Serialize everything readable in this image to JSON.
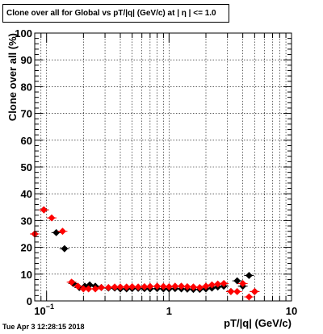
{
  "timestamp": "Tue Apr  3 12:28:15 2018",
  "chart_data": {
    "type": "scatter",
    "title": "Clone  over all for Global vs pT/|q| (GeV/c) at |  η | <= 1.0",
    "xlabel": "pT/|q| (GeV/c)",
    "ylabel": "Clone  over all (%)",
    "x_scale": "log",
    "xlim": [
      0.08,
      10
    ],
    "ylim": [
      0,
      100
    ],
    "grid": true,
    "x_tick_labels": [
      {
        "value": 0.1,
        "base": "10",
        "exp": "−1"
      },
      {
        "value": 1,
        "label": "1"
      },
      {
        "value": 10,
        "label": "10"
      }
    ],
    "y_ticks": [
      0,
      10,
      20,
      30,
      40,
      50,
      60,
      70,
      80,
      90,
      100
    ],
    "series": [
      {
        "color": "#000000",
        "marker": "diamond",
        "points": [
          {
            "x": 0.08,
            "y": 25
          },
          {
            "x": 0.095,
            "y": 34
          },
          {
            "x": 0.12,
            "y": 25.5
          },
          {
            "x": 0.14,
            "y": 19.5
          },
          {
            "x": 0.165,
            "y": 6.5
          },
          {
            "x": 0.185,
            "y": 5
          },
          {
            "x": 0.205,
            "y": 5.5
          },
          {
            "x": 0.225,
            "y": 6
          },
          {
            "x": 0.25,
            "y": 5.5
          },
          {
            "x": 0.28,
            "y": 5
          },
          {
            "x": 0.32,
            "y": 4.8
          },
          {
            "x": 0.36,
            "y": 4.8
          },
          {
            "x": 0.4,
            "y": 4.5
          },
          {
            "x": 0.45,
            "y": 4.5
          },
          {
            "x": 0.5,
            "y": 4.6
          },
          {
            "x": 0.56,
            "y": 4.7
          },
          {
            "x": 0.63,
            "y": 4.6
          },
          {
            "x": 0.7,
            "y": 4.5
          },
          {
            "x": 0.8,
            "y": 4.6
          },
          {
            "x": 0.9,
            "y": 4.5
          },
          {
            "x": 1.0,
            "y": 4.5
          },
          {
            "x": 1.12,
            "y": 4.6
          },
          {
            "x": 1.26,
            "y": 4.5
          },
          {
            "x": 1.41,
            "y": 4.4
          },
          {
            "x": 1.58,
            "y": 4.3
          },
          {
            "x": 1.78,
            "y": 4.3
          },
          {
            "x": 2.0,
            "y": 4.5
          },
          {
            "x": 2.24,
            "y": 4.8
          },
          {
            "x": 2.5,
            "y": 5.2
          },
          {
            "x": 2.8,
            "y": 5.5
          },
          {
            "x": 3.2,
            "y": 3.5
          },
          {
            "x": 3.6,
            "y": 7.5
          },
          {
            "x": 4.0,
            "y": 5.5
          },
          {
            "x": 4.5,
            "y": 9.5
          },
          {
            "x": 5.0,
            "y": 3.5
          }
        ]
      },
      {
        "color": "#ff0000",
        "marker": "diamond",
        "points": [
          {
            "x": 0.08,
            "y": 25
          },
          {
            "x": 0.095,
            "y": 34
          },
          {
            "x": 0.11,
            "y": 31
          },
          {
            "x": 0.135,
            "y": 26
          },
          {
            "x": 0.16,
            "y": 7
          },
          {
            "x": 0.18,
            "y": 5.5
          },
          {
            "x": 0.2,
            "y": 4.5
          },
          {
            "x": 0.22,
            "y": 4.5
          },
          {
            "x": 0.25,
            "y": 4.5
          },
          {
            "x": 0.28,
            "y": 5
          },
          {
            "x": 0.32,
            "y": 5
          },
          {
            "x": 0.36,
            "y": 5.2
          },
          {
            "x": 0.4,
            "y": 5.2
          },
          {
            "x": 0.45,
            "y": 5.2
          },
          {
            "x": 0.5,
            "y": 5.3
          },
          {
            "x": 0.56,
            "y": 5.2
          },
          {
            "x": 0.63,
            "y": 5.3
          },
          {
            "x": 0.7,
            "y": 5.4
          },
          {
            "x": 0.8,
            "y": 5.5
          },
          {
            "x": 0.9,
            "y": 5.4
          },
          {
            "x": 1.0,
            "y": 5.3
          },
          {
            "x": 1.12,
            "y": 5.5
          },
          {
            "x": 1.26,
            "y": 5.5
          },
          {
            "x": 1.41,
            "y": 5.3
          },
          {
            "x": 1.58,
            "y": 5.2
          },
          {
            "x": 1.78,
            "y": 5.0
          },
          {
            "x": 2.0,
            "y": 5.5
          },
          {
            "x": 2.24,
            "y": 6.0
          },
          {
            "x": 2.5,
            "y": 6.3
          },
          {
            "x": 2.8,
            "y": 6.5
          },
          {
            "x": 3.2,
            "y": 3.5
          },
          {
            "x": 3.6,
            "y": 3.5
          },
          {
            "x": 4.0,
            "y": 6.5
          },
          {
            "x": 4.5,
            "y": 1.5
          },
          {
            "x": 5.0,
            "y": 3.5
          }
        ]
      }
    ]
  }
}
